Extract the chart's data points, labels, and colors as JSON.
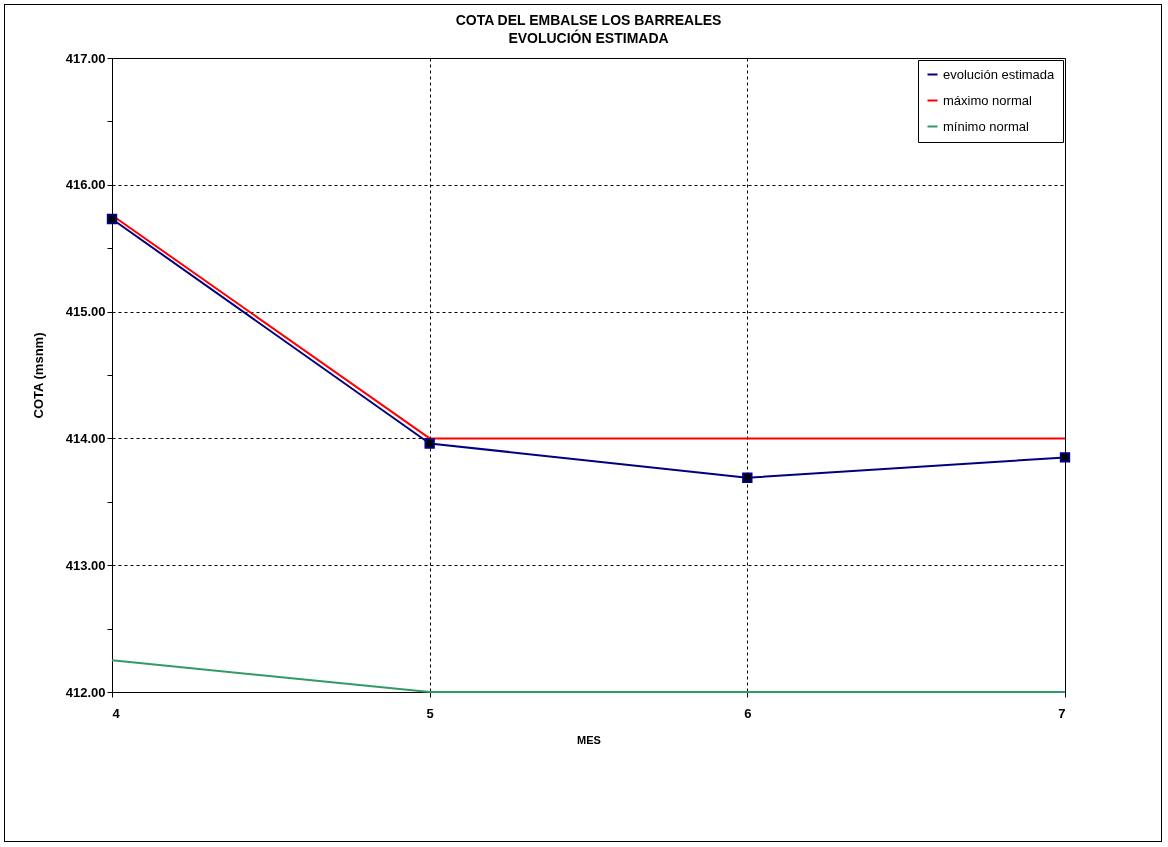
{
  "chart_data": {
    "type": "line",
    "title": "COTA DEL EMBALSE LOS BARREALES",
    "subtitle": "EVOLUCIÓN ESTIMADA",
    "xlabel": "MES",
    "ylabel": "COTA (msnm)",
    "x": [
      4,
      5,
      6,
      7
    ],
    "series": [
      {
        "name": "evolución estimada",
        "color": "#000080",
        "values": [
          415.73,
          413.96,
          413.69,
          413.85
        ],
        "marker": "square"
      },
      {
        "name": "máximo normal",
        "color": "#ff0000",
        "values": [
          415.76,
          414,
          414,
          414
        ],
        "marker": "none"
      },
      {
        "name": "mínimo normal",
        "color": "#339966",
        "values": [
          412.25,
          412,
          412,
          412
        ],
        "marker": "none"
      }
    ],
    "xlim": [
      4,
      7
    ],
    "xticks": [
      4,
      5,
      6,
      7
    ],
    "ylim": [
      412,
      417
    ],
    "yticks": [
      {
        "value": 412,
        "label": "412.00"
      },
      {
        "value": 412.5,
        "label": null
      },
      {
        "value": 413,
        "label": "413.00"
      },
      {
        "value": 413.5,
        "label": null
      },
      {
        "value": 414,
        "label": "414.00"
      },
      {
        "value": 414.5,
        "label": null
      },
      {
        "value": 415,
        "label": "415.00"
      },
      {
        "value": 415.5,
        "label": null
      },
      {
        "value": 416,
        "label": "416.00"
      },
      {
        "value": 416.5,
        "label": null
      },
      {
        "value": 417,
        "label": "417.00"
      }
    ],
    "grid": true,
    "legend": "top right",
    "line_style": "solid"
  }
}
